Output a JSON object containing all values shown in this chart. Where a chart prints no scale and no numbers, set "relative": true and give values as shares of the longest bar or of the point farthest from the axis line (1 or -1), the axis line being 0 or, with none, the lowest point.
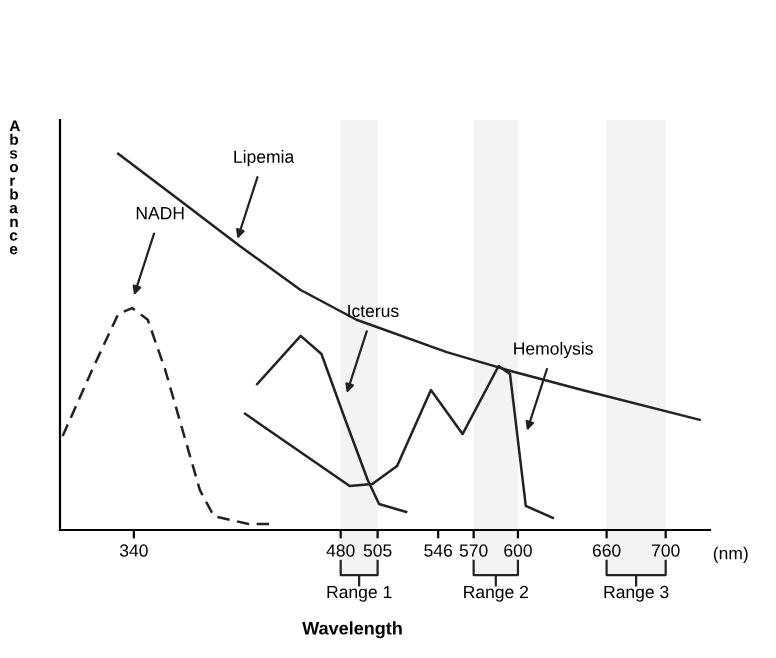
{
  "chart_data": {
    "type": "line",
    "relative": true,
    "xlabel": "Wavelength",
    "ylabel": "Absorbance",
    "xlim": [
      290,
      730
    ],
    "xticks": [
      340,
      480,
      505,
      546,
      570,
      600,
      660,
      700
    ],
    "series": [
      {
        "color": "#222222",
        "x": [
          329.4,
          370.6,
          411.7,
          452.9,
          490.7,
          551.8,
          597.6,
          643.5,
          723
        ],
        "values": [
          1.0,
          0.878,
          0.755,
          0.638,
          0.559,
          0.473,
          0.42,
          0.372,
          0.293
        ]
      },
      {
        "color": "#222222",
        "line_style": "dashed",
        "x": [
          291.8,
          311.8,
          329.4,
          338.8,
          349.4,
          361.2,
          372.9,
          384.7,
          394.1,
          417.6,
          435.3
        ],
        "values": [
          0.25,
          0.426,
          0.574,
          0.59,
          0.559,
          0.426,
          0.266,
          0.106,
          0.037,
          0.016,
          0.016
        ]
      },
      {
        "color": "#222222",
        "x": [
          423.5,
          452.9,
          467.0,
          483.1,
          498.3,
          506,
          524.3
        ],
        "values": [
          0.388,
          0.516,
          0.468,
          0.293,
          0.133,
          0.069,
          0.048
        ]
      },
      {
        "color": "#222222",
        "x": [
          415.3,
          486.1,
          501.4,
          518.2,
          541.1,
          562.5,
          586.9,
          594.6,
          605.3,
          623.6
        ],
        "values": [
          0.309,
          0.117,
          0.122,
          0.17,
          0.372,
          0.255,
          0.436,
          0.415,
          0.064,
          0.032
        ]
      }
    ],
    "annotations": [
      {
        "text": "Lipemia",
        "x": 409,
        "y": 0.76
      },
      {
        "text": "NADH",
        "x": 339,
        "y": 0.61
      },
      {
        "text": "Icterus",
        "x": 483,
        "y": 0.35
      },
      {
        "text": "Hemolysis",
        "x": 605,
        "y": 0.25
      },
      "(nm)"
    ],
    "bands": [
      {
        "axis": "x",
        "from": 480,
        "to": 505,
        "label": "Range 1",
        "color": "#f3f3f3"
      },
      {
        "axis": "x",
        "from": 570,
        "to": 600,
        "label": "Range 2",
        "color": "#f3f3f3"
      },
      {
        "axis": "x",
        "from": 660,
        "to": 700,
        "label": "Range 3",
        "color": "#f3f3f3"
      }
    ]
  }
}
